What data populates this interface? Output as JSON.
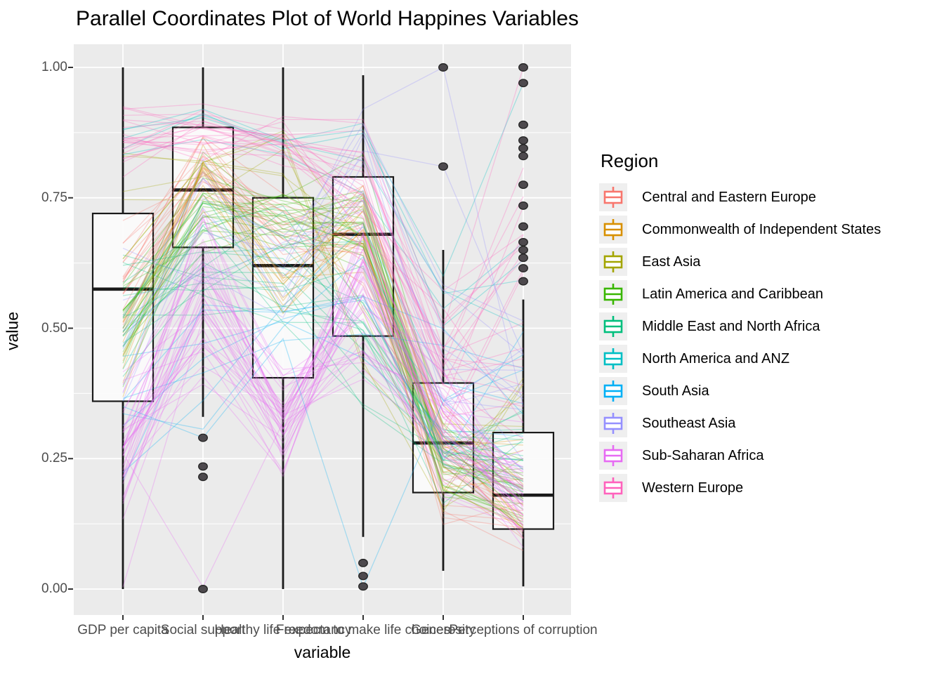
{
  "title": "Parallel Coordinates Plot of World Happines Variables",
  "axes": {
    "x_title": "variable",
    "y_title": "value",
    "y_ticks": [
      {
        "label": "0.00",
        "value": 0.0
      },
      {
        "label": "0.25",
        "value": 0.25
      },
      {
        "label": "0.50",
        "value": 0.5
      },
      {
        "label": "0.75",
        "value": 0.75
      },
      {
        "label": "1.00",
        "value": 1.0
      }
    ]
  },
  "legend": {
    "title": "Region"
  },
  "colors": {
    "panel_background": "#EBEBEB",
    "gridline": "#FFFFFF",
    "box_stroke": "#1A1A1A",
    "box_fill": "#FBFBFB",
    "outlier_fill": "#454045",
    "outlier_stroke": "#242424",
    "tick_text": "#4D4D4D",
    "axis_tick": "#333333",
    "legend_key_bg": "#EFEFEF"
  },
  "chart_data": {
    "type": "parallel-coordinates-with-boxplots",
    "title": "Parallel Coordinates Plot of World Happines Variables",
    "xlabel": "variable",
    "ylabel": "value",
    "ylim": [
      0,
      1
    ],
    "grid": "on",
    "legend_position": "right",
    "categories": [
      "GDP per capita",
      "Social support",
      "Healthy life expectancy",
      "Freedom to make life choices",
      "Generosity",
      "Perceptions of corruption"
    ],
    "boxplots": [
      {
        "category": "GDP per capita",
        "whisker_low": 0.0,
        "q1": 0.36,
        "median": 0.575,
        "q3": 0.72,
        "whisker_high": 1.0,
        "outliers": []
      },
      {
        "category": "Social support",
        "whisker_low": 0.33,
        "q1": 0.655,
        "median": 0.765,
        "q3": 0.885,
        "whisker_high": 1.0,
        "outliers": [
          0.29,
          0.235,
          0.215,
          0.0
        ]
      },
      {
        "category": "Healthy life expectancy",
        "whisker_low": 0.0,
        "q1": 0.405,
        "median": 0.62,
        "q3": 0.75,
        "whisker_high": 1.0,
        "outliers": []
      },
      {
        "category": "Freedom to make life choices",
        "whisker_low": 0.1,
        "q1": 0.485,
        "median": 0.68,
        "q3": 0.79,
        "whisker_high": 0.985,
        "outliers": [
          0.05,
          0.025,
          0.005
        ]
      },
      {
        "category": "Generosity",
        "whisker_low": 0.035,
        "q1": 0.185,
        "median": 0.28,
        "q3": 0.395,
        "whisker_high": 0.65,
        "outliers": [
          0.81,
          1.0
        ]
      },
      {
        "category": "Perceptions of corruption",
        "whisker_low": 0.005,
        "q1": 0.115,
        "median": 0.18,
        "q3": 0.3,
        "whisker_high": 0.555,
        "outliers": [
          1.0,
          0.97,
          0.89,
          0.86,
          0.845,
          0.83,
          0.775,
          0.735,
          0.695,
          0.665,
          0.65,
          0.635,
          0.615,
          0.59
        ]
      }
    ],
    "regions": [
      {
        "name": "Central and Eastern Europe",
        "color": "#F8766D",
        "n_lines": 17,
        "profile_mean": [
          0.62,
          0.82,
          0.68,
          0.66,
          0.22,
          0.13
        ],
        "profile_spread": [
          0.1,
          0.07,
          0.07,
          0.12,
          0.1,
          0.07
        ]
      },
      {
        "name": "Commonwealth of Independent States",
        "color": "#D89000",
        "n_lines": 12,
        "profile_mean": [
          0.48,
          0.78,
          0.55,
          0.68,
          0.28,
          0.22
        ],
        "profile_spread": [
          0.1,
          0.08,
          0.07,
          0.1,
          0.12,
          0.1
        ]
      },
      {
        "name": "East Asia",
        "color": "#A3A500",
        "n_lines": 6,
        "profile_mean": [
          0.75,
          0.8,
          0.82,
          0.58,
          0.25,
          0.35
        ],
        "profile_spread": [
          0.12,
          0.07,
          0.07,
          0.14,
          0.12,
          0.15
        ]
      },
      {
        "name": "Latin America and Caribbean",
        "color": "#39B600",
        "n_lines": 20,
        "profile_mean": [
          0.5,
          0.74,
          0.7,
          0.7,
          0.22,
          0.17
        ],
        "profile_spread": [
          0.12,
          0.09,
          0.08,
          0.11,
          0.09,
          0.08
        ]
      },
      {
        "name": "Middle East and North Africa",
        "color": "#00BF7D",
        "n_lines": 17,
        "profile_mean": [
          0.55,
          0.62,
          0.62,
          0.52,
          0.25,
          0.25
        ],
        "profile_spread": [
          0.15,
          0.13,
          0.11,
          0.16,
          0.11,
          0.13
        ]
      },
      {
        "name": "North America and ANZ",
        "color": "#00BFC4",
        "n_lines": 4,
        "profile_mean": [
          0.86,
          0.9,
          0.84,
          0.82,
          0.55,
          0.6
        ],
        "profile_spread": [
          0.06,
          0.04,
          0.04,
          0.07,
          0.09,
          0.18
        ]
      },
      {
        "name": "South Asia",
        "color": "#00B0F6",
        "n_lines": 7,
        "profile_mean": [
          0.32,
          0.45,
          0.48,
          0.58,
          0.38,
          0.32
        ],
        "profile_spread": [
          0.13,
          0.16,
          0.11,
          0.16,
          0.16,
          0.15
        ]
      },
      {
        "name": "Southeast Asia",
        "color": "#9590FF",
        "n_lines": 9,
        "profile_mean": [
          0.5,
          0.7,
          0.58,
          0.78,
          0.45,
          0.4
        ],
        "profile_spread": [
          0.15,
          0.11,
          0.11,
          0.11,
          0.16,
          0.18
        ]
      },
      {
        "name": "Sub-Saharan Africa",
        "color": "#E76BF3",
        "n_lines": 36,
        "profile_mean": [
          0.28,
          0.55,
          0.33,
          0.55,
          0.32,
          0.18
        ],
        "profile_spread": [
          0.13,
          0.15,
          0.11,
          0.15,
          0.13,
          0.09
        ]
      },
      {
        "name": "Western Europe",
        "color": "#FF62BC",
        "n_lines": 21,
        "profile_mean": [
          0.86,
          0.88,
          0.86,
          0.78,
          0.42,
          0.55
        ],
        "profile_spread": [
          0.09,
          0.05,
          0.05,
          0.11,
          0.13,
          0.26
        ]
      }
    ],
    "explicit_lines": [
      {
        "region_index": 7,
        "values": [
          0.5,
          0.8,
          0.62,
          0.92,
          1.0,
          0.35
        ]
      },
      {
        "region_index": 7,
        "values": [
          0.46,
          0.73,
          0.56,
          0.84,
          0.81,
          0.45
        ]
      },
      {
        "region_index": 8,
        "values": [
          0.26,
          0.0,
          0.32,
          0.42,
          0.3,
          0.15
        ]
      },
      {
        "region_index": 8,
        "values": [
          0.0,
          0.52,
          0.28,
          0.58,
          0.34,
          0.32
        ]
      },
      {
        "region_index": 6,
        "values": [
          0.35,
          0.29,
          0.48,
          0.0,
          0.36,
          0.42
        ]
      },
      {
        "region_index": 9,
        "values": [
          0.92,
          0.93,
          0.9,
          0.9,
          0.5,
          1.0
        ]
      },
      {
        "region_index": 5,
        "values": [
          0.88,
          0.92,
          0.86,
          0.88,
          0.6,
          0.97
        ]
      }
    ],
    "line_alpha": 0.3,
    "line_width": 1.3,
    "seed": 42
  }
}
